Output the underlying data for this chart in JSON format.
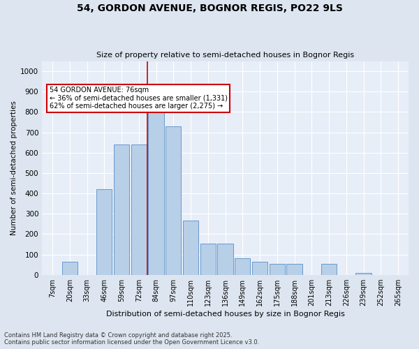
{
  "title1": "54, GORDON AVENUE, BOGNOR REGIS, PO22 9LS",
  "title2": "Size of property relative to semi-detached houses in Bognor Regis",
  "xlabel": "Distribution of semi-detached houses by size in Bognor Regis",
  "ylabel": "Number of semi-detached properties",
  "categories": [
    "7sqm",
    "20sqm",
    "33sqm",
    "46sqm",
    "59sqm",
    "72sqm",
    "84sqm",
    "97sqm",
    "110sqm",
    "123sqm",
    "136sqm",
    "149sqm",
    "162sqm",
    "175sqm",
    "188sqm",
    "201sqm",
    "213sqm",
    "226sqm",
    "239sqm",
    "252sqm",
    "265sqm"
  ],
  "values": [
    0,
    65,
    0,
    420,
    640,
    640,
    810,
    730,
    265,
    155,
    155,
    80,
    65,
    55,
    55,
    0,
    55,
    0,
    10,
    0,
    0
  ],
  "bar_color": "#b8cfe8",
  "bar_edge_color": "#6699cc",
  "vline_x_index": 6,
  "vline_color": "#cc0000",
  "annotation_title": "54 GORDON AVENUE: 76sqm",
  "annotation_line2": "← 36% of semi-detached houses are smaller (1,331)",
  "annotation_line3": "62% of semi-detached houses are larger (2,275) →",
  "annotation_box_color": "#cc0000",
  "ylim": [
    0,
    1050
  ],
  "yticks": [
    0,
    100,
    200,
    300,
    400,
    500,
    600,
    700,
    800,
    900,
    1000
  ],
  "footer1": "Contains HM Land Registry data © Crown copyright and database right 2025.",
  "footer2": "Contains public sector information licensed under the Open Government Licence v3.0.",
  "bg_color": "#dde6f0",
  "plot_bg_color": "#e8eef8"
}
